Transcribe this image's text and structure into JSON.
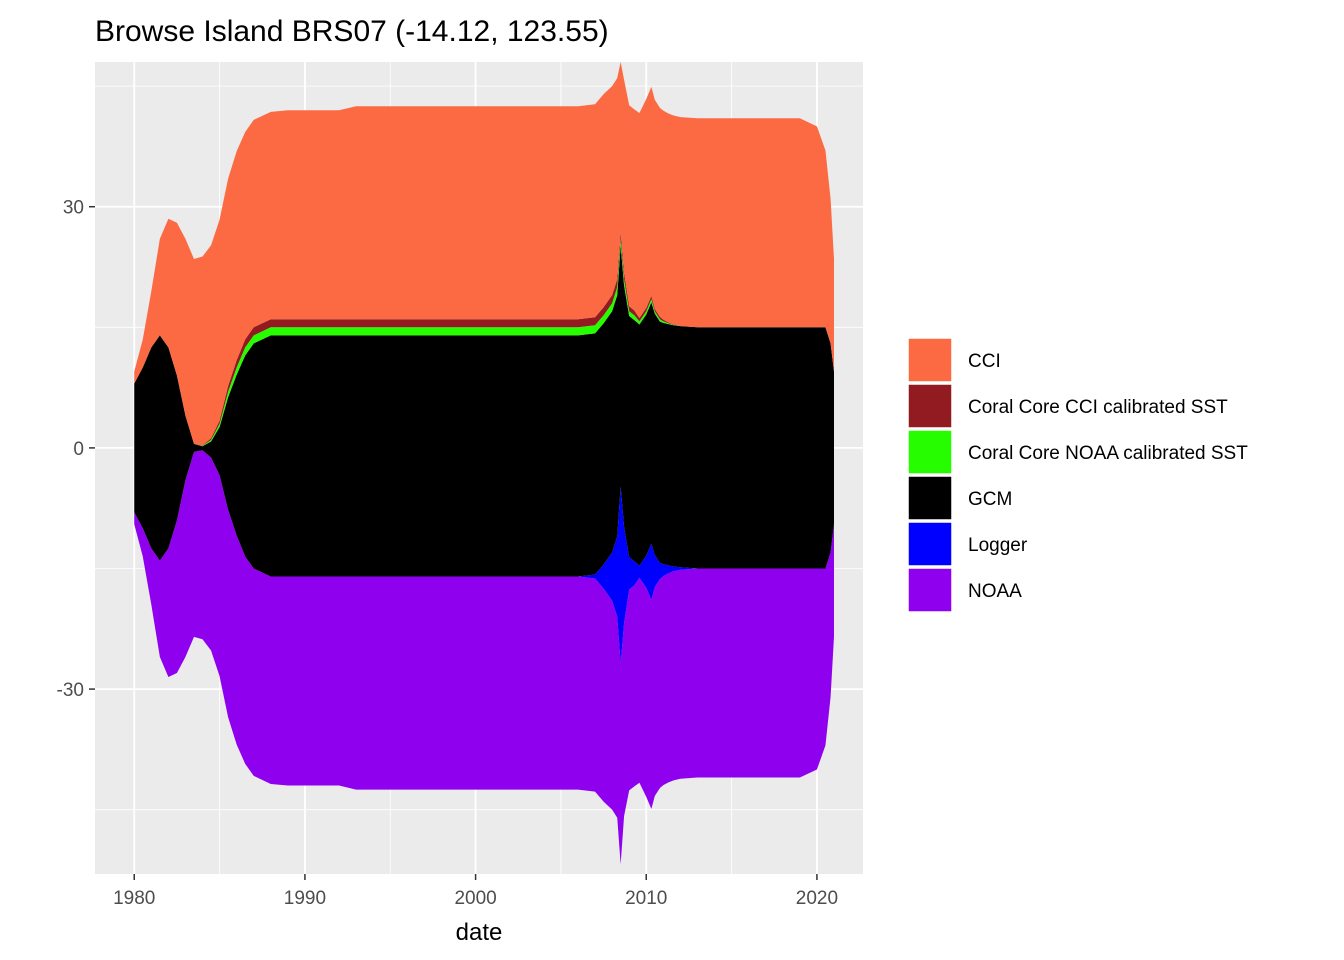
{
  "chart_data": {
    "type": "area",
    "subtype": "streamgraph",
    "title": "Browse Island BRS07 (-14.12, 123.55)",
    "xlabel": "date",
    "ylabel": "",
    "x_range": [
      1977.7,
      2022.7
    ],
    "y_range": [
      -53,
      48
    ],
    "x_ticks": [
      1980,
      1990,
      2000,
      2010,
      2020
    ],
    "y_ticks": [
      30,
      0,
      -30
    ],
    "y_tick_labels": [
      "30",
      "0",
      "-30"
    ],
    "grid": true,
    "legend_position": "right",
    "legend_order": [
      "CCI",
      "Coral Core CCI calibrated SST",
      "Coral Core NOAA calibrated SST",
      "GCM",
      "Logger",
      "NOAA"
    ],
    "stack_order": [
      "NOAA",
      "Logger",
      "GCM",
      "Coral Core NOAA calibrated SST",
      "Coral Core CCI calibrated SST",
      "CCI"
    ],
    "x": [
      1980.0,
      1980.5,
      1981.0,
      1981.5,
      1982.0,
      1982.5,
      1983.0,
      1983.5,
      1984.0,
      1984.5,
      1985.0,
      1985.5,
      1986.0,
      1986.5,
      1987.0,
      1988.0,
      1989.0,
      1990.0,
      1991.0,
      1992.0,
      1993.0,
      1994.0,
      1995.0,
      1996.0,
      1997.0,
      1998.0,
      1999.0,
      2000.0,
      2001.0,
      2002.0,
      2003.0,
      2004.0,
      2005.0,
      2006.0,
      2007.0,
      2007.5,
      2008.0,
      2008.3,
      2008.5,
      2008.7,
      2009.0,
      2009.3,
      2009.6,
      2010.0,
      2010.3,
      2010.5,
      2010.8,
      2011.0,
      2011.3,
      2011.6,
      2012.0,
      2013.0,
      2014.0,
      2015.0,
      2016.0,
      2017.0,
      2018.0,
      2019.0,
      2020.0,
      2020.5,
      2020.8,
      2021.0
    ],
    "series": [
      {
        "name": "CCI",
        "color": "#fb6a42",
        "values": [
          1.5,
          3.5,
          7,
          12,
          16,
          19,
          22,
          23,
          23.5,
          24,
          25,
          25.8,
          26,
          25.8,
          25.8,
          25.8,
          26,
          26,
          26,
          26,
          26.5,
          26.5,
          26.5,
          26.5,
          26.5,
          26.5,
          26.5,
          26.5,
          26.5,
          26.5,
          26.5,
          26.5,
          26.5,
          26.5,
          26.5,
          26.5,
          26,
          25,
          25,
          24,
          25,
          25,
          25.5,
          26,
          26,
          26,
          26,
          26,
          26,
          26,
          26,
          26,
          26,
          26,
          26,
          26,
          26,
          26,
          25,
          22,
          18,
          14
        ]
      },
      {
        "name": "Coral Core CCI calibrated SST",
        "color": "#921a21",
        "values": [
          0,
          0,
          0,
          0,
          0,
          0,
          0,
          0,
          0.05,
          0.2,
          0.4,
          0.7,
          0.9,
          1.0,
          1.0,
          1.0,
          1.0,
          1.0,
          1.0,
          1.0,
          1.0,
          1.0,
          1.0,
          1.0,
          1.0,
          1.0,
          1.0,
          1.0,
          1.0,
          1.0,
          1.0,
          1.0,
          1.0,
          1.0,
          1.0,
          1.0,
          1.0,
          1.0,
          0.8,
          0.8,
          0.6,
          0.6,
          0.4,
          0.4,
          0.4,
          0.3,
          0.3,
          0.2,
          0.1,
          0.05,
          0,
          0,
          0,
          0,
          0,
          0,
          0,
          0,
          0,
          0,
          0,
          0
        ]
      },
      {
        "name": "Coral Core NOAA calibrated SST",
        "color": "#26fe00",
        "values": [
          0,
          0,
          0,
          0,
          0,
          0,
          0,
          0,
          0.05,
          0.2,
          0.4,
          0.7,
          0.9,
          1.0,
          1.0,
          1.0,
          1.0,
          1.0,
          1.0,
          1.0,
          1.0,
          1.0,
          1.0,
          1.0,
          1.0,
          1.0,
          1.0,
          1.0,
          1.0,
          1.0,
          1.0,
          1.0,
          1.0,
          1.0,
          1.0,
          1.0,
          1.0,
          1.0,
          0.8,
          0.8,
          0.6,
          0.6,
          0.4,
          0.4,
          0.4,
          0.3,
          0.3,
          0.2,
          0.1,
          0.05,
          0,
          0,
          0,
          0,
          0,
          0,
          0,
          0,
          0,
          0,
          0,
          0
        ]
      },
      {
        "name": "GCM",
        "color": "#000000",
        "values": [
          16,
          20,
          25,
          28,
          25,
          18,
          8,
          1,
          0.5,
          2,
          6,
          14,
          20,
          25,
          28,
          30,
          30,
          30,
          30,
          30,
          30,
          30,
          30,
          30,
          30,
          30,
          30,
          30,
          30,
          30,
          30,
          30,
          30,
          30,
          30,
          30,
          30,
          30,
          30,
          30,
          30,
          30,
          30,
          30,
          30,
          30,
          30,
          30,
          30,
          30,
          30,
          30,
          30,
          30,
          30,
          30,
          30,
          30,
          30,
          30,
          26,
          19
        ]
      },
      {
        "name": "Logger",
        "color": "#0000fe",
        "values": [
          0,
          0,
          0,
          0,
          0,
          0,
          0,
          0,
          0,
          0,
          0,
          0,
          0,
          0,
          0,
          0,
          0,
          0,
          0,
          0,
          0,
          0,
          0,
          0,
          0,
          0,
          0,
          0,
          0,
          0,
          0,
          0,
          0,
          0,
          0.5,
          3,
          6,
          10,
          22,
          12,
          4,
          3,
          1.5,
          4,
          7,
          4,
          2,
          1.5,
          1,
          0.6,
          0.3,
          0,
          0,
          0,
          0,
          0,
          0,
          0,
          0,
          0,
          0,
          0
        ]
      },
      {
        "name": "NOAA",
        "color": "#8e00ee",
        "values": [
          1.5,
          3.5,
          7,
          12,
          16,
          19,
          22,
          23,
          23.5,
          24,
          25,
          25.8,
          26,
          25.8,
          25.8,
          25.8,
          26,
          26,
          26,
          26,
          26.5,
          26.5,
          26.5,
          26.5,
          26.5,
          26.5,
          26.5,
          26.5,
          26.5,
          26.5,
          26.5,
          26.5,
          26.5,
          26.5,
          26.5,
          26.5,
          26,
          25,
          25,
          24,
          25,
          25,
          25.5,
          26,
          26,
          26,
          26,
          26,
          26,
          26,
          26,
          26,
          26,
          26,
          26,
          26,
          26,
          26,
          25,
          22,
          18,
          14
        ]
      }
    ]
  }
}
